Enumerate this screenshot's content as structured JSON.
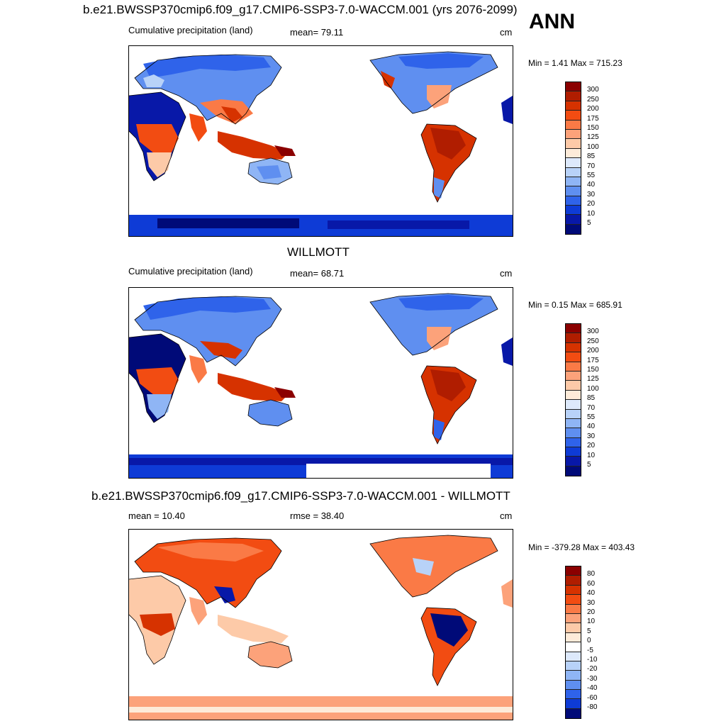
{
  "season": "ANN",
  "panels": [
    {
      "title": "b.e21.BWSSP370cmip6.f09_g17.CMIP6-SSP3-7.0-WACCM.001 (yrs 2076-2099)",
      "left_label": "Cumulative precipitation (land)",
      "center_label": "mean=  79.11",
      "units": "cm",
      "minmax": "Min =   1.41 Max = 715.23",
      "colorbar": {
        "labels": [
          "300",
          "250",
          "200",
          "175",
          "150",
          "125",
          "100",
          "85",
          "70",
          "55",
          "40",
          "30",
          "20",
          "10",
          "5"
        ],
        "colors": [
          "#8b0000",
          "#b01d00",
          "#d63200",
          "#f24c12",
          "#fa7a46",
          "#fca27a",
          "#fdcaa8",
          "#fdebd9",
          "#dde9fb",
          "#b8d2f8",
          "#8fb5f5",
          "#5f8ff0",
          "#2f63ea",
          "#0e3bd6",
          "#0818a8",
          "#000a78"
        ]
      }
    },
    {
      "title": "WILLMOTT",
      "left_label": "Cumulative precipitation (land)",
      "center_label": "mean=  68.71",
      "units": "cm",
      "minmax": "Min =   0.15 Max = 685.91",
      "colorbar": {
        "labels": [
          "300",
          "250",
          "200",
          "175",
          "150",
          "125",
          "100",
          "85",
          "70",
          "55",
          "40",
          "30",
          "20",
          "10",
          "5"
        ],
        "colors": [
          "#8b0000",
          "#b01d00",
          "#d63200",
          "#f24c12",
          "#fa7a46",
          "#fca27a",
          "#fdcaa8",
          "#fdebd9",
          "#dde9fb",
          "#b8d2f8",
          "#8fb5f5",
          "#5f8ff0",
          "#2f63ea",
          "#0e3bd6",
          "#0818a8",
          "#000a78"
        ]
      }
    },
    {
      "title": "b.e21.BWSSP370cmip6.f09_g17.CMIP6-SSP3-7.0-WACCM.001 - WILLMOTT",
      "left_label": "mean =  10.40",
      "center_label": "rmse =  38.40",
      "units": "cm",
      "minmax": "Min = -379.28 Max = 403.43",
      "colorbar": {
        "labels": [
          "80",
          "60",
          "40",
          "30",
          "20",
          "10",
          "5",
          "0",
          "-5",
          "-10",
          "-20",
          "-30",
          "-40",
          "-60",
          "-80"
        ],
        "colors": [
          "#8b0000",
          "#b01d00",
          "#d63200",
          "#f24c12",
          "#fa7a46",
          "#fca27a",
          "#fdcaa8",
          "#fdebd9",
          "#ffffff",
          "#dde9fb",
          "#b8d2f8",
          "#8fb5f5",
          "#5f8ff0",
          "#2f63ea",
          "#0e3bd6",
          "#000a78"
        ]
      }
    }
  ]
}
